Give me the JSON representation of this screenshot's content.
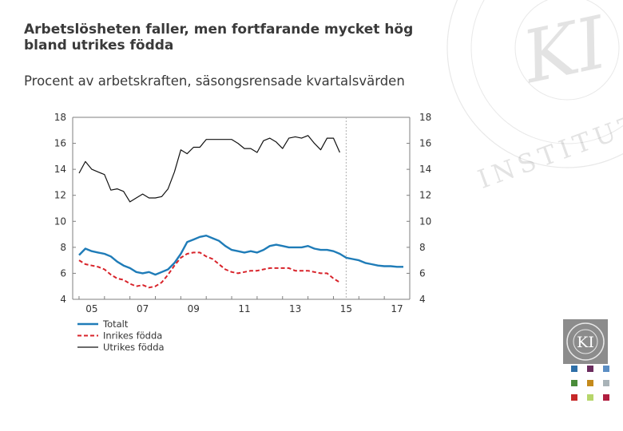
{
  "title": "Arbetslösheten faller, men fortfarande mycket hög bland utrikes födda",
  "subtitle": "Procent av arbetskraften, säsongsrensade kvartalsvärden",
  "watermark": {
    "text_ki": "KI",
    "text_institutet": "INSTITUTET"
  },
  "logo": {
    "text": "KI"
  },
  "colors": {
    "totalt": "#1f7cb8",
    "inrikes": "#d8232a",
    "utrikes": "#111111",
    "axis": "#7f7f7f",
    "forecast_line": "#b0b0b0",
    "swatches": [
      "#2e6fa8",
      "#6b2c5e",
      "#5b8ec4",
      "#4a8c3a",
      "#c48a1c",
      "#a9b3b8",
      "#c62828",
      "#b6d66a",
      "#b01e3f"
    ]
  },
  "chart_data": {
    "type": "line",
    "title": "Arbetslösheten faller, men fortfarande mycket hög bland utrikes födda",
    "ylabel": "Procent av arbetskraften, säsongsrensade kvartalsvärden",
    "xlabel": "",
    "xlim": [
      2004.75,
      2018.0
    ],
    "ylim": [
      4,
      18
    ],
    "yticks": [
      4,
      6,
      8,
      10,
      12,
      14,
      16,
      18
    ],
    "xtick_values": [
      2005,
      2007,
      2009,
      2011,
      2013,
      2015,
      2017
    ],
    "xtick_labels": [
      "05",
      "07",
      "09",
      "11",
      "13",
      "15",
      "17"
    ],
    "forecast_start": 2015.5,
    "grid": false,
    "legend": "bottom-left",
    "series": [
      {
        "name": "Totalt",
        "style": "solid",
        "x": [
          2005.0,
          2005.25,
          2005.5,
          2005.75,
          2006.0,
          2006.25,
          2006.5,
          2006.75,
          2007.0,
          2007.25,
          2007.5,
          2007.75,
          2008.0,
          2008.25,
          2008.5,
          2008.75,
          2009.0,
          2009.25,
          2009.5,
          2009.75,
          2010.0,
          2010.25,
          2010.5,
          2010.75,
          2011.0,
          2011.25,
          2011.5,
          2011.75,
          2012.0,
          2012.25,
          2012.5,
          2012.75,
          2013.0,
          2013.25,
          2013.5,
          2013.75,
          2014.0,
          2014.25,
          2014.5,
          2014.75,
          2015.0,
          2015.25,
          2015.5,
          2015.75,
          2016.0,
          2016.25,
          2016.5,
          2016.75,
          2017.0,
          2017.25,
          2017.5,
          2017.75
        ],
        "y": [
          7.4,
          7.9,
          7.7,
          7.6,
          7.5,
          7.3,
          6.9,
          6.6,
          6.4,
          6.1,
          6.0,
          6.1,
          5.9,
          6.1,
          6.3,
          6.8,
          7.5,
          8.4,
          8.6,
          8.8,
          8.9,
          8.7,
          8.5,
          8.1,
          7.8,
          7.7,
          7.6,
          7.7,
          7.6,
          7.8,
          8.1,
          8.2,
          8.1,
          8.0,
          8.0,
          8.0,
          8.1,
          7.9,
          7.8,
          7.8,
          7.7,
          7.5,
          7.2,
          7.1,
          7.0,
          6.8,
          6.7,
          6.6,
          6.55,
          6.55,
          6.5,
          6.5
        ]
      },
      {
        "name": "Inrikes födda",
        "style": "dashed",
        "x": [
          2005.0,
          2005.25,
          2005.5,
          2005.75,
          2006.0,
          2006.25,
          2006.5,
          2006.75,
          2007.0,
          2007.25,
          2007.5,
          2007.75,
          2008.0,
          2008.25,
          2008.5,
          2008.75,
          2009.0,
          2009.25,
          2009.5,
          2009.75,
          2010.0,
          2010.25,
          2010.5,
          2010.75,
          2011.0,
          2011.25,
          2011.5,
          2011.75,
          2012.0,
          2012.25,
          2012.5,
          2012.75,
          2013.0,
          2013.25,
          2013.5,
          2013.75,
          2014.0,
          2014.25,
          2014.5,
          2014.75,
          2015.0,
          2015.25
        ],
        "y": [
          7.0,
          6.7,
          6.6,
          6.5,
          6.3,
          5.9,
          5.6,
          5.5,
          5.2,
          5.0,
          5.1,
          4.9,
          5.0,
          5.3,
          5.9,
          6.6,
          7.2,
          7.5,
          7.6,
          7.6,
          7.3,
          7.1,
          6.7,
          6.3,
          6.1,
          6.0,
          6.1,
          6.2,
          6.2,
          6.3,
          6.4,
          6.4,
          6.4,
          6.4,
          6.2,
          6.2,
          6.2,
          6.1,
          6.0,
          6.0,
          5.6,
          5.3
        ]
      },
      {
        "name": "Utrikes födda",
        "style": "solid",
        "x": [
          2005.0,
          2005.25,
          2005.5,
          2005.75,
          2006.0,
          2006.25,
          2006.5,
          2006.75,
          2007.0,
          2007.25,
          2007.5,
          2007.75,
          2008.0,
          2008.25,
          2008.5,
          2008.75,
          2009.0,
          2009.25,
          2009.5,
          2009.75,
          2010.0,
          2010.25,
          2010.5,
          2010.75,
          2011.0,
          2011.25,
          2011.5,
          2011.75,
          2012.0,
          2012.25,
          2012.5,
          2012.75,
          2013.0,
          2013.25,
          2013.5,
          2013.75,
          2014.0,
          2014.25,
          2014.5,
          2014.75,
          2015.0,
          2015.25
        ],
        "y": [
          13.7,
          14.6,
          14.0,
          13.8,
          13.6,
          12.4,
          12.5,
          12.3,
          11.5,
          11.8,
          12.1,
          11.8,
          11.8,
          11.9,
          12.5,
          13.8,
          15.5,
          15.2,
          15.7,
          15.7,
          16.3,
          16.3,
          16.3,
          16.3,
          16.3,
          16.0,
          15.6,
          15.6,
          15.3,
          16.2,
          16.4,
          16.1,
          15.6,
          16.4,
          16.5,
          16.4,
          16.6,
          16.0,
          15.5,
          16.4,
          16.4,
          15.3
        ]
      }
    ]
  }
}
